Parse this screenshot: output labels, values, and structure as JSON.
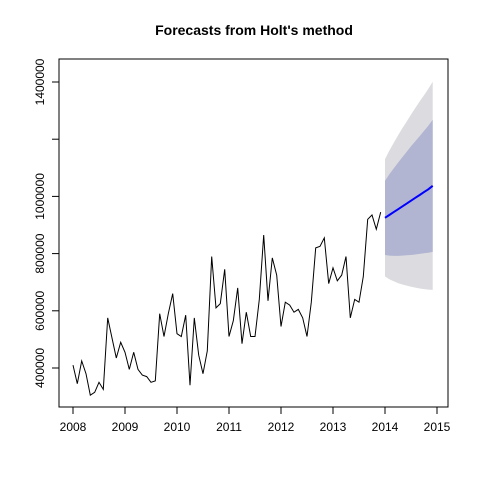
{
  "chart_data": {
    "type": "line",
    "title": "Forecasts from Holt's method",
    "xlabel": "",
    "ylabel": "",
    "xlim": [
      2008,
      2015
    ],
    "ylim": [
      300000,
      1450000
    ],
    "grid": false,
    "legend": "none",
    "x_ticks": [
      2008,
      2009,
      2010,
      2011,
      2012,
      2013,
      2014,
      2015
    ],
    "x_tick_labels": [
      "2008",
      "2009",
      "2010",
      "2011",
      "2012",
      "2013",
      "2014",
      "2015"
    ],
    "y_ticks": [
      400000,
      600000,
      800000,
      1000000,
      1200000,
      1400000
    ],
    "y_tick_labels": [
      "400000",
      "600000",
      "800000",
      "1000000",
      "",
      "1400000"
    ],
    "colors": {
      "history": "#000000",
      "forecast": "#0000ff",
      "band80": "#b1b5d1",
      "band95": "#dcdce0"
    },
    "history": {
      "start": 2008,
      "frequency": 12,
      "values": [
        410000,
        345000,
        425000,
        380000,
        305000,
        315000,
        350000,
        325000,
        575000,
        505000,
        435000,
        490000,
        455000,
        395000,
        455000,
        395000,
        375000,
        370000,
        350000,
        355000,
        590000,
        510000,
        590000,
        660000,
        520000,
        510000,
        585000,
        340000,
        575000,
        445000,
        380000,
        460000,
        790000,
        610000,
        625000,
        745000,
        510000,
        565000,
        680000,
        485000,
        595000,
        510000,
        510000,
        640000,
        865000,
        635000,
        785000,
        725000,
        545000,
        630000,
        620000,
        595000,
        605000,
        575000,
        510000,
        630000,
        820000,
        825000,
        855000,
        695000,
        750000,
        705000,
        725000,
        790000,
        575000,
        640000,
        630000,
        720000,
        920000,
        935000,
        885000,
        945000
      ]
    },
    "forecast": {
      "start": 2014,
      "frequency": 12,
      "values": [
        925000,
        935000,
        945000,
        955000,
        965000,
        975000,
        985000,
        995000,
        1005000,
        1015000,
        1025000,
        1037000
      ],
      "lo80": [
        795000,
        793000,
        792000,
        792000,
        793000,
        794000,
        795000,
        797000,
        799000,
        801000,
        803000,
        806000
      ],
      "hi80": [
        1055000,
        1077000,
        1098000,
        1118000,
        1137000,
        1156000,
        1175000,
        1193000,
        1211000,
        1229000,
        1247000,
        1268000
      ],
      "lo95": [
        720000,
        710000,
        703000,
        697000,
        692000,
        688000,
        684000,
        681000,
        678000,
        676000,
        674000,
        673000
      ],
      "hi95": [
        1130000,
        1160000,
        1187000,
        1213000,
        1238000,
        1262000,
        1286000,
        1309000,
        1332000,
        1354000,
        1376000,
        1401000
      ]
    }
  }
}
